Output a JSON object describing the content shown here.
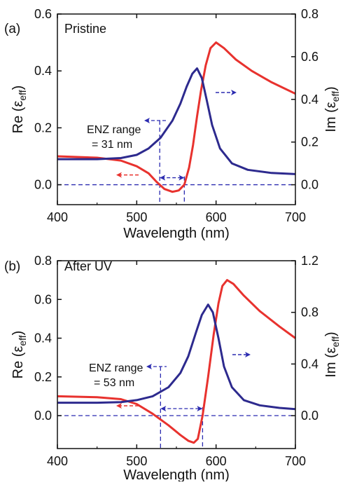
{
  "colors": {
    "re": "#e8322e",
    "im": "#2d2a8e",
    "guide": "#2b2bb0",
    "axis": "#111111"
  },
  "chart_data": [
    {
      "type": "line",
      "panel_label": "(a)",
      "annotation": "Pristine",
      "xlabel": "Wavelength (nm)",
      "ylabel_left": {
        "base": "Re (ε",
        "sub": "eff",
        "close": ")"
      },
      "ylabel_right": {
        "base": "Im (ε",
        "sub": "eff",
        "close": ")"
      },
      "xlim": [
        400,
        700
      ],
      "ylim_left": [
        -0.07,
        0.6
      ],
      "ylim_right": [
        -0.0933,
        0.8
      ],
      "xticks": [
        400,
        500,
        600,
        700
      ],
      "xtick_labels": [
        "400",
        "500",
        "600",
        "700"
      ],
      "yticks_left": [
        0.0,
        0.2,
        0.4,
        0.6
      ],
      "ytick_labels_left": [
        "0.0",
        "0.2",
        "0.4",
        "0.6"
      ],
      "yticks_right": [
        0.0,
        0.2,
        0.4,
        0.6,
        0.8
      ],
      "ytick_labels_right": [
        "0.0",
        "0.2",
        "0.4",
        "0.6",
        "0.8"
      ],
      "enz_label_lines": [
        "ENZ range",
        "= 31 nm"
      ],
      "enz_bounds": [
        529,
        560
      ],
      "series": [
        {
          "axis": "left",
          "color": "#e8322e",
          "x": [
            400,
            450,
            480,
            500,
            515,
            525,
            535,
            545,
            553,
            560,
            566,
            571,
            576,
            581,
            587,
            593,
            600,
            610,
            625,
            645,
            670,
            700
          ],
          "y": [
            0.1,
            0.095,
            0.085,
            0.065,
            0.04,
            0.01,
            -0.015,
            -0.025,
            -0.02,
            0.0,
            0.06,
            0.14,
            0.24,
            0.33,
            0.42,
            0.48,
            0.5,
            0.48,
            0.44,
            0.4,
            0.36,
            0.32
          ]
        },
        {
          "axis": "right",
          "color": "#2d2a8e",
          "x": [
            400,
            450,
            480,
            500,
            515,
            530,
            545,
            555,
            563,
            570,
            576,
            582,
            588,
            595,
            605,
            620,
            640,
            670,
            700
          ],
          "y": [
            0.12,
            0.12,
            0.125,
            0.14,
            0.17,
            0.22,
            0.3,
            0.38,
            0.46,
            0.52,
            0.545,
            0.5,
            0.4,
            0.28,
            0.17,
            0.1,
            0.07,
            0.055,
            0.05
          ]
        }
      ]
    },
    {
      "type": "line",
      "panel_label": "(b)",
      "annotation": "After UV",
      "xlabel": "Wavelength (nm)",
      "ylabel_left": {
        "base": "Re (ε",
        "sub": "eff",
        "close": ")"
      },
      "ylabel_right": {
        "base": "Im (ε",
        "sub": "eff",
        "close": ")"
      },
      "xlim": [
        400,
        700
      ],
      "ylim_left": [
        -0.17,
        0.8
      ],
      "ylim_right": [
        -0.255,
        1.2
      ],
      "xticks": [
        400,
        500,
        600,
        700
      ],
      "xtick_labels": [
        "400",
        "500",
        "600",
        "700"
      ],
      "yticks_left": [
        0.0,
        0.2,
        0.4,
        0.6,
        0.8
      ],
      "ytick_labels_left": [
        "0.0",
        "0.2",
        "0.4",
        "0.6",
        "0.8"
      ],
      "yticks_right": [
        0.0,
        0.4,
        0.8,
        1.2
      ],
      "ytick_labels_right": [
        "0.0",
        "0.4",
        "0.8",
        "1.2"
      ],
      "enz_label_lines": [
        "ENZ range",
        "= 53 nm"
      ],
      "enz_bounds": [
        530,
        583
      ],
      "series": [
        {
          "axis": "left",
          "color": "#e8322e",
          "x": [
            400,
            450,
            480,
            500,
            520,
            540,
            555,
            565,
            572,
            577,
            583,
            590,
            597,
            603,
            608,
            614,
            622,
            635,
            655,
            680,
            700
          ],
          "y": [
            0.1,
            0.095,
            0.085,
            0.06,
            0.01,
            -0.05,
            -0.1,
            -0.13,
            -0.14,
            -0.12,
            0.0,
            0.2,
            0.42,
            0.58,
            0.67,
            0.7,
            0.68,
            0.62,
            0.54,
            0.46,
            0.4
          ]
        },
        {
          "axis": "right",
          "color": "#2d2a8e",
          "x": [
            400,
            450,
            480,
            500,
            520,
            540,
            555,
            565,
            575,
            582,
            590,
            596,
            603,
            610,
            620,
            635,
            655,
            680,
            700
          ],
          "y": [
            0.1,
            0.1,
            0.105,
            0.12,
            0.15,
            0.22,
            0.33,
            0.46,
            0.65,
            0.78,
            0.86,
            0.8,
            0.6,
            0.38,
            0.22,
            0.12,
            0.08,
            0.06,
            0.05
          ]
        }
      ]
    }
  ]
}
